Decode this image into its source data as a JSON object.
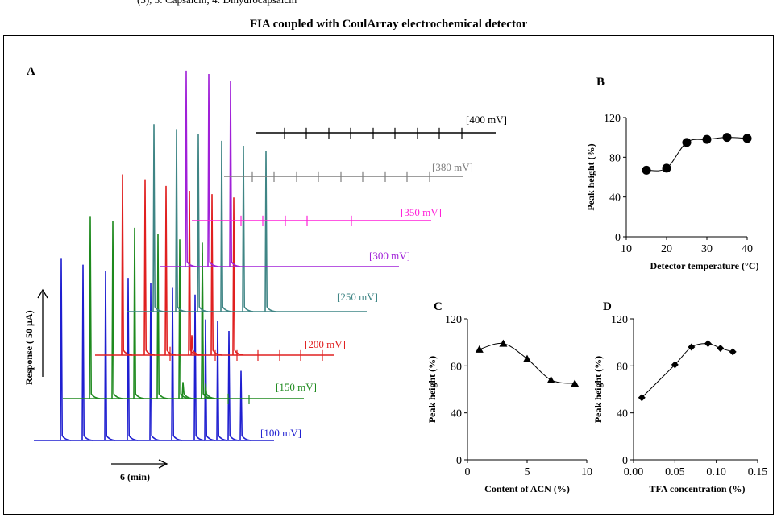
{
  "figure": {
    "title": "FIA coupled with CoulArray electrochemical detector"
  },
  "chart_data": [
    {
      "panel": "A",
      "type": "line",
      "ylabel": "Response ( 50 µA)",
      "xlabel": "6  (min)",
      "series": [
        {
          "name": "[100 mV]",
          "color": "#1f1fd0",
          "peak_heights_uA": [
            110,
            106,
            102,
            98,
            95,
            92,
            88,
            73,
            72,
            66,
            42
          ]
        },
        {
          "name": "[150 mV]",
          "color": "#1e8a1e",
          "peak_heights_uA": [
            110,
            107,
            103,
            99,
            96,
            94,
            88,
            10,
            9,
            3,
            2
          ]
        },
        {
          "name": "[200 mV]",
          "color": "#e02020",
          "peak_heights_uA": [
            109,
            106,
            102,
            99,
            97,
            95,
            12,
            5,
            3,
            3,
            3,
            3,
            3,
            3
          ]
        },
        {
          "name": "[250 mV]",
          "color": "#3f8585",
          "peak_heights_uA": [
            113,
            110,
            107,
            103,
            100,
            97
          ]
        },
        {
          "name": "[300 mV]",
          "color": "#a020d8",
          "peak_heights_uA": [
            118,
            116,
            112
          ]
        },
        {
          "name": "[350 mV]",
          "color": "#ff20d8",
          "peak_heights_uA": [
            3,
            3,
            3,
            3,
            3
          ]
        },
        {
          "name": "[380 mV]",
          "color": "#7f7f7f",
          "peak_heights_uA": [
            3,
            3,
            3,
            3,
            3,
            3,
            3,
            3,
            3
          ]
        },
        {
          "name": "[400 mV]",
          "color": "#000000",
          "peak_heights_uA": [
            3,
            3,
            3,
            3,
            3,
            3,
            3,
            3,
            3
          ]
        }
      ]
    },
    {
      "panel": "B",
      "type": "line",
      "xlabel": "Detector temperature (°C)",
      "ylabel": "Peak height (%)",
      "marker": "circle",
      "x": [
        15,
        20,
        25,
        30,
        35,
        40
      ],
      "y": [
        67,
        69,
        95,
        98,
        100,
        99
      ],
      "xlim": [
        10,
        40
      ],
      "ylim": [
        0,
        120
      ],
      "xticks": [
        "10",
        "20",
        "30",
        "40"
      ],
      "yticks": [
        "0",
        "40",
        "80",
        "120"
      ]
    },
    {
      "panel": "C",
      "type": "line",
      "xlabel": "Content of ACN (%)",
      "ylabel": "Peak height (%)",
      "marker": "triangle",
      "x": [
        1,
        3,
        5,
        7,
        9
      ],
      "y": [
        94,
        99,
        86,
        68,
        65
      ],
      "xlim": [
        0,
        10
      ],
      "ylim": [
        0,
        120
      ],
      "xticks": [
        "0",
        "5",
        "10"
      ],
      "yticks": [
        "0",
        "40",
        "80",
        "120"
      ]
    },
    {
      "panel": "D",
      "type": "line",
      "xlabel": "TFA concentration (%)",
      "ylabel": "Peak height (%)",
      "marker": "diamond",
      "x": [
        0.01,
        0.05,
        0.07,
        0.09,
        0.105,
        0.12
      ],
      "y": [
        53,
        81,
        96,
        99,
        95,
        92
      ],
      "xlim": [
        0,
        0.15
      ],
      "ylim": [
        0,
        120
      ],
      "xticks": [
        "0.00",
        "0.05",
        "0.10",
        "0.15"
      ],
      "yticks": [
        "0",
        "40",
        "80",
        "120"
      ]
    }
  ]
}
